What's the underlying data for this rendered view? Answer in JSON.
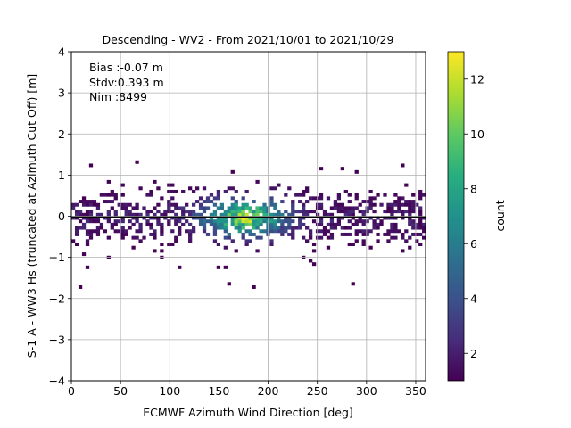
{
  "chart_data": {
    "type": "heatmap",
    "title": "Descending - WV2 - From 2021/10/01 to 2021/10/29",
    "xlabel": "ECMWF Azimuth Wind Direction [deg]",
    "ylabel": "S-1 A - WW3 Hs (truncated at Azimuth Cut Off) [m]",
    "xlim": [
      0,
      360
    ],
    "ylim": [
      -4,
      4
    ],
    "xticks": [
      "0",
      "50",
      "100",
      "150",
      "200",
      "250",
      "300",
      "350"
    ],
    "yticks": [
      "4",
      "3",
      "2",
      "1",
      "0",
      "−1",
      "−2",
      "−3",
      "−4"
    ],
    "grid": true,
    "colormap": "viridis",
    "color_range": [
      1,
      13
    ],
    "colorbar_label": "count",
    "colorbar_ticks": [
      "12",
      "10",
      "8",
      "6",
      "4",
      "2"
    ],
    "stats": {
      "bias": "Bias :-0.07 m",
      "stdv": "Stdv:0.393 m",
      "nim": "Nim :8499"
    },
    "mean_line_y": -0.03,
    "bin_width_x": 3.6,
    "bin_height_y": 0.08
  }
}
